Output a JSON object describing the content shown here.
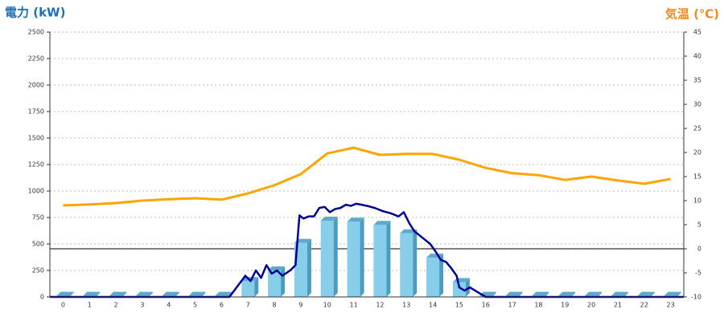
{
  "chart_data": {
    "type": "bar-line",
    "y_title": "電力 (kW)",
    "y2_title": "気温 (℃)",
    "categories": [
      "0",
      "1",
      "2",
      "3",
      "4",
      "5",
      "6",
      "7",
      "8",
      "9",
      "10",
      "11",
      "12",
      "13",
      "14",
      "15",
      "16",
      "17",
      "18",
      "19",
      "20",
      "21",
      "22",
      "23"
    ],
    "xlim": [
      -0.5,
      23.5
    ],
    "ylim": [
      0,
      2500
    ],
    "yticks": [
      0,
      250,
      500,
      750,
      1000,
      1250,
      1500,
      1750,
      2000,
      2250,
      2500
    ],
    "y2lim": [
      -10,
      45
    ],
    "y2ticks": [
      -10,
      -5,
      0,
      5,
      10,
      15,
      20,
      25,
      30,
      35,
      40,
      45
    ],
    "grid": true,
    "series": [
      {
        "type": "bar",
        "color": "#87ceeb",
        "values": [
          10,
          10,
          10,
          10,
          10,
          10,
          10,
          150,
          250,
          510,
          720,
          710,
          680,
          600,
          370,
          140,
          10,
          10,
          10,
          10,
          10,
          10,
          10,
          10
        ]
      },
      {
        "type": "line",
        "color": "#000099",
        "x": [
          -0.5,
          6.3,
          6.9,
          7.1,
          7.3,
          7.5,
          7.7,
          7.9,
          8.1,
          8.3,
          8.6,
          8.8,
          8.95,
          9.1,
          9.3,
          9.5,
          9.7,
          9.9,
          10.1,
          10.3,
          10.5,
          10.7,
          10.9,
          11.1,
          11.3,
          11.5,
          11.8,
          12.1,
          12.4,
          12.7,
          12.9,
          13.1,
          13.3,
          13.6,
          13.9,
          14.1,
          14.3,
          14.5,
          14.7,
          14.9,
          15.0,
          15.2,
          15.4,
          15.6,
          15.8,
          16.0,
          23.5
        ],
        "values": [
          0,
          0,
          200,
          150,
          250,
          180,
          300,
          220,
          250,
          200,
          250,
          300,
          770,
          740,
          760,
          760,
          840,
          850,
          800,
          830,
          840,
          870,
          860,
          880,
          870,
          860,
          840,
          810,
          790,
          760,
          800,
          700,
          620,
          560,
          500,
          430,
          350,
          330,
          270,
          200,
          90,
          60,
          90,
          60,
          30,
          0,
          0
        ]
      },
      {
        "type": "line",
        "axis": "y2",
        "color": "#ffa500",
        "values": [
          9,
          9.2,
          9.5,
          10,
          10.3,
          10.5,
          10.2,
          11.5,
          13.2,
          15.5,
          19.8,
          21,
          19.5,
          19.7,
          19.7,
          18.5,
          16.8,
          15.7,
          15.3,
          14.3,
          15,
          14.2,
          13.5,
          14.5
        ]
      }
    ]
  }
}
